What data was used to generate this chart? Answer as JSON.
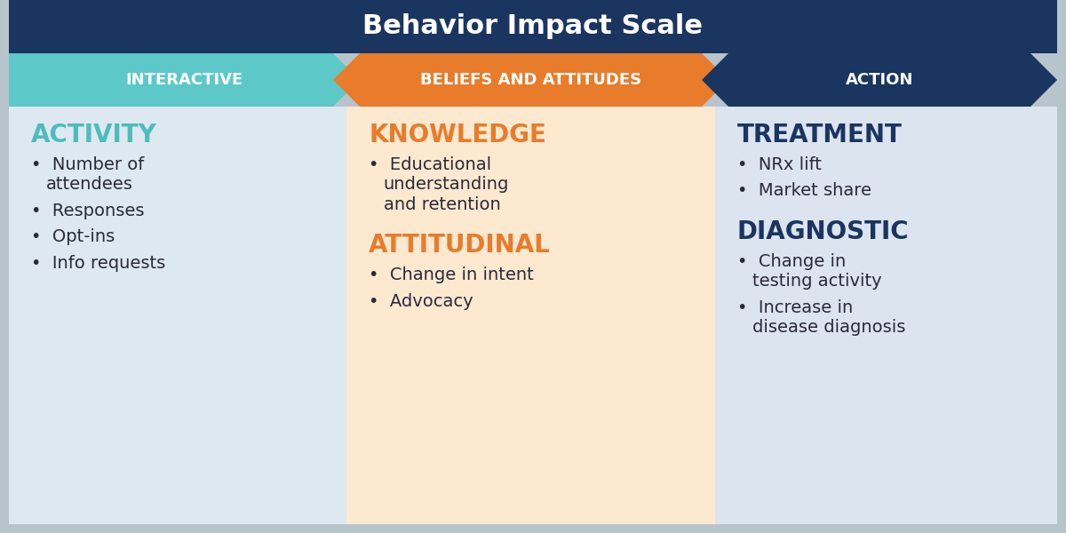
{
  "title": "Behavior Impact Scale",
  "title_bg": "#1a3560",
  "title_color": "#ffffff",
  "title_fontsize": 22,
  "arrow_labels": [
    "INTERACTIVE",
    "BELIEFS AND ATTITUDES",
    "ACTION"
  ],
  "arrow_colors": [
    "#5dc8c8",
    "#e87c2a",
    "#1a3560"
  ],
  "arrow_text_color": "#ffffff",
  "arrow_fontsize": 13,
  "col_bg_colors": [
    "#dde8f0",
    "#fde8d0",
    "#dce4f0"
  ],
  "outer_bg": "#b8c4cc",
  "col1_heading": "ACTIVITY",
  "col1_heading_color": "#4dbcbc",
  "col1_items": [
    "Number of\nattendees",
    "Responses",
    "Opt-ins",
    "Info requests"
  ],
  "col1_bullet_color": "#4dbcbc",
  "col2_heading1": "KNOWLEDGE",
  "col2_heading1_color": "#e87c2a",
  "col2_items1": [
    "Educational\nunderstanding\nand retention"
  ],
  "col2_heading2": "ATTITUDINAL",
  "col2_heading2_color": "#e87c2a",
  "col2_items2": [
    "Change in intent",
    "Advocacy"
  ],
  "col3_heading1": "TREATMENT",
  "col3_heading1_color": "#1a3560",
  "col3_items1": [
    "NRx lift",
    "Market share"
  ],
  "col3_heading2": "DIAGNOSTIC",
  "col3_heading2_color": "#1a3560",
  "col3_items2": [
    "Change in\ntesting activity",
    "Increase in\ndisease diagnosis"
  ],
  "item_fontsize": 14,
  "heading_fontsize": 20,
  "bullet_char": "•",
  "text_color": "#2a2a3a"
}
